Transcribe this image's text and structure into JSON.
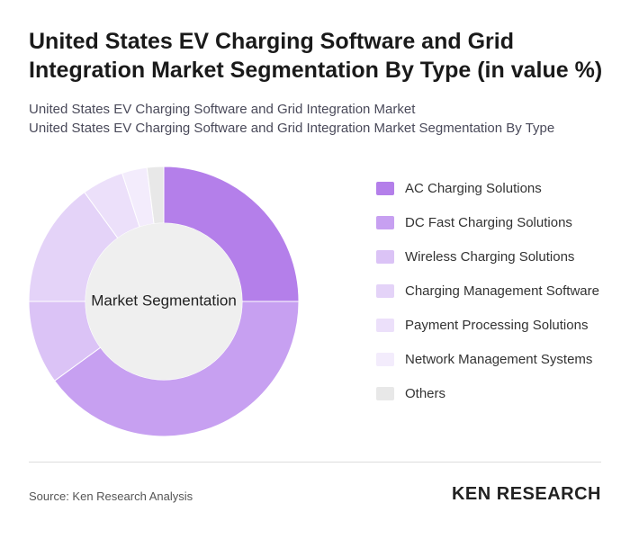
{
  "chart_data": {
    "type": "donut",
    "title": "United States EV Charging Software and Grid Integration Market Segmentation By Type (in value %)",
    "subtitle": [
      "United States EV Charging Software and Grid Integration Market",
      "United States EV Charging Software and Grid Integration Market Segmentation By Type"
    ],
    "center_label": "Market Segmentation",
    "categories": [
      "AC Charging Solutions",
      "DC Fast Charging Solutions",
      "Wireless Charging Solutions",
      "Charging Management Software",
      "Payment Processing Solutions",
      "Network Management Systems",
      "Others"
    ],
    "values": [
      25,
      40,
      10,
      15,
      5,
      3,
      2
    ],
    "colors": [
      "#b47fea",
      "#c7a0f1",
      "#dbc3f6",
      "#e4d3f8",
      "#ece0fa",
      "#f3ecfc",
      "#e8e8e8"
    ],
    "legend": "right"
  },
  "footer": {
    "source": "Source: Ken Research Analysis",
    "brand": "KEN RESEARCH"
  }
}
